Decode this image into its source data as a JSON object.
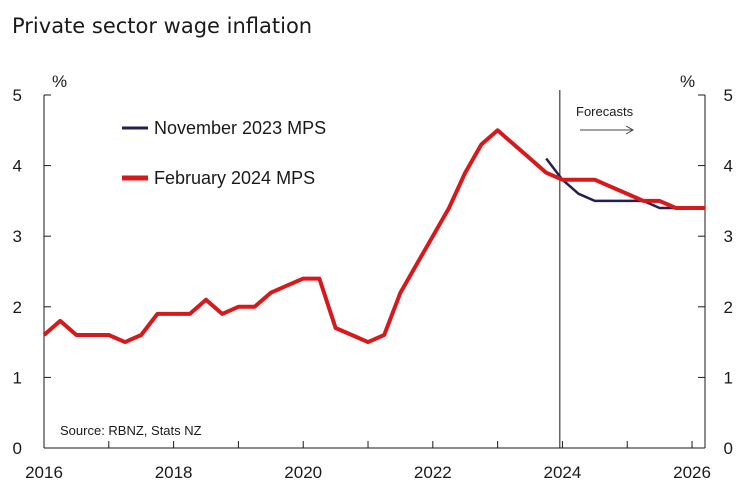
{
  "chart_data": {
    "type": "line",
    "title": "Private sector wage inflation",
    "y_unit_left": "%",
    "y_unit_right": "%",
    "ylim": [
      0,
      5
    ],
    "xlim": [
      2016,
      2026.2
    ],
    "y_ticks": [
      "0",
      "1",
      "2",
      "3",
      "4",
      "5"
    ],
    "x_ticks": [
      "2016",
      "2018",
      "2020",
      "2022",
      "2024",
      "2026"
    ],
    "forecast_start": 2023.96,
    "forecast_label": "Forecasts",
    "source": "Source: RBNZ, Stats NZ",
    "series": [
      {
        "name": "November 2023 MPS",
        "color": "#231f4f",
        "x": [
          2023.75,
          2024.0,
          2024.25,
          2024.5,
          2024.75,
          2025.0,
          2025.25,
          2025.5,
          2025.75,
          2026.0,
          2026.2
        ],
        "values": [
          4.1,
          3.8,
          3.6,
          3.5,
          3.5,
          3.5,
          3.5,
          3.4,
          3.4,
          3.4,
          3.4
        ]
      },
      {
        "name": "February 2024 MPS",
        "color": "#d7191c",
        "x": [
          2016.0,
          2016.25,
          2016.5,
          2016.75,
          2017.0,
          2017.25,
          2017.5,
          2017.75,
          2018.0,
          2018.25,
          2018.5,
          2018.75,
          2019.0,
          2019.25,
          2019.5,
          2019.75,
          2020.0,
          2020.25,
          2020.5,
          2020.75,
          2021.0,
          2021.25,
          2021.5,
          2021.75,
          2022.0,
          2022.25,
          2022.5,
          2022.75,
          2023.0,
          2023.25,
          2023.5,
          2023.75,
          2024.0,
          2024.25,
          2024.5,
          2024.75,
          2025.0,
          2025.25,
          2025.5,
          2025.75,
          2026.0,
          2026.2
        ],
        "values": [
          1.6,
          1.8,
          1.6,
          1.6,
          1.6,
          1.5,
          1.6,
          1.9,
          1.9,
          1.9,
          2.1,
          1.9,
          2.0,
          2.0,
          2.2,
          2.3,
          2.4,
          2.4,
          1.7,
          1.6,
          1.5,
          1.6,
          2.2,
          2.6,
          3.0,
          3.4,
          3.9,
          4.3,
          4.5,
          4.3,
          4.1,
          3.9,
          3.8,
          3.8,
          3.8,
          3.7,
          3.6,
          3.5,
          3.5,
          3.4,
          3.4,
          3.4
        ]
      }
    ]
  }
}
